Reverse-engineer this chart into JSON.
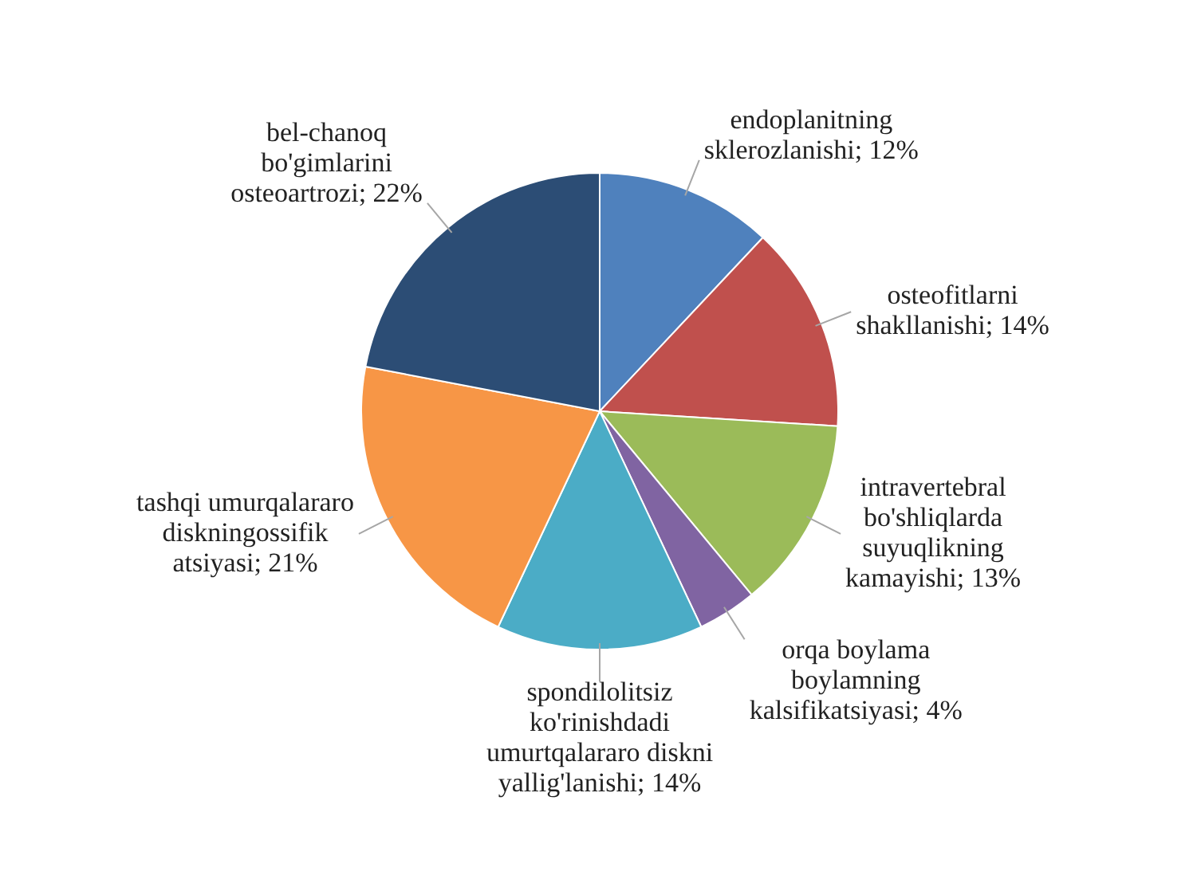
{
  "chart_data": {
    "type": "pie",
    "categories": [
      "endoplanitning sklerozlanishi",
      "osteofitlarni shakllanishi",
      "intravertebral bo'shliqlarda suyuqlikning kamayishi",
      "orqa boylama boylamning kalsifikatsiyasi",
      "spondilolitsiz ko'rinishdadi umurtqalararo diskni yallig'lanishi",
      "tashqi umurqalararo diskningossifik atsiyasi",
      "bel-chanoq bo'gimlarini osteoartrozi"
    ],
    "values": [
      12,
      14,
      13,
      4,
      14,
      21,
      22
    ],
    "value_labels": [
      "12%",
      "14%",
      "13%",
      "4%",
      "14%",
      "21%",
      "22%"
    ],
    "colors": [
      "#4f81bd",
      "#c0504d",
      "#9bbb59",
      "#8064a2",
      "#4bacc6",
      "#f79646",
      "#2c4d75"
    ],
    "legend": false
  }
}
